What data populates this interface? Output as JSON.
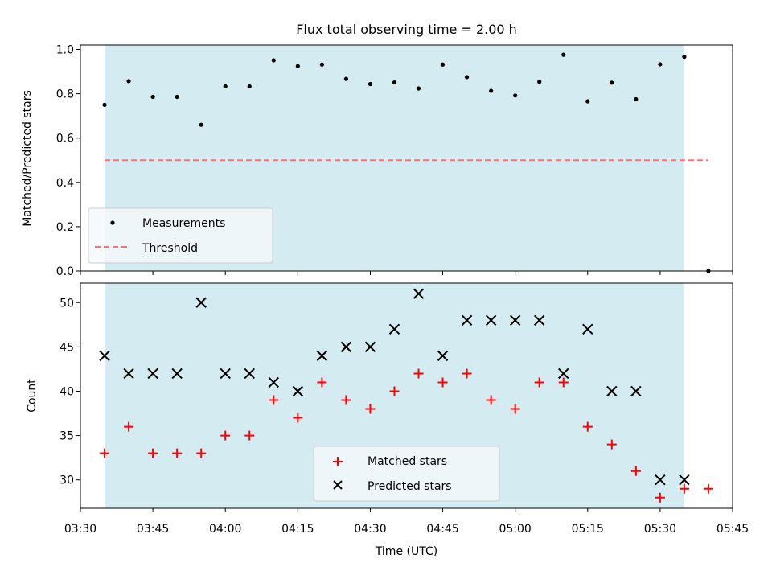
{
  "chart_data": {
    "title": "Flux total observing time = 2.00 h",
    "xlabel": "Time (UTC)",
    "x_tick_labels": [
      "03:30",
      "03:45",
      "04:00",
      "04:15",
      "04:30",
      "04:45",
      "05:00",
      "05:15",
      "05:30",
      "05:45"
    ],
    "x_tick_minutes": [
      210,
      225,
      240,
      255,
      270,
      285,
      300,
      315,
      330,
      345
    ],
    "xlim": [
      "03:30",
      "05:45"
    ],
    "observing_window": [
      "03:35",
      "05:35"
    ],
    "colors": {
      "window": "#d4ebf1",
      "matched": "#ff0000",
      "predicted": "#000000",
      "threshold": "#ff7070"
    },
    "panels": [
      {
        "type": "scatter",
        "ylabel": "Matched/Predicted stars",
        "ylim": [
          0,
          1.02
        ],
        "y_ticks": [
          "0.0",
          "0.2",
          "0.4",
          "0.6",
          "0.8",
          "1.0"
        ],
        "legend_position": "lower-left",
        "threshold": {
          "name": "Threshold",
          "value": 0.5,
          "x_range": [
            "03:35",
            "05:40"
          ]
        },
        "series": [
          {
            "name": "Measurements",
            "x": [
              "03:35",
              "03:40",
              "03:45",
              "03:50",
              "03:55",
              "04:00",
              "04:05",
              "04:10",
              "04:15",
              "04:20",
              "04:25",
              "04:30",
              "04:35",
              "04:40",
              "04:45",
              "04:50",
              "04:55",
              "05:00",
              "05:05",
              "05:10",
              "05:15",
              "05:20",
              "05:25",
              "05:30",
              "05:35",
              "05:40"
            ],
            "y": [
              0.75,
              0.857,
              0.786,
              0.786,
              0.66,
              0.833,
              0.833,
              0.951,
              0.925,
              0.932,
              0.867,
              0.844,
              0.851,
              0.824,
              0.932,
              0.875,
              0.813,
              0.792,
              0.854,
              0.976,
              0.766,
              0.85,
              0.775,
              0.933,
              0.967,
              0.0
            ]
          }
        ]
      },
      {
        "type": "scatter",
        "ylabel": "Count",
        "ylim": [
          26.8,
          52.2
        ],
        "y_ticks": [
          "30",
          "35",
          "40",
          "45",
          "50"
        ],
        "legend_position": "lower-center",
        "series": [
          {
            "name": "Matched stars",
            "marker": "plus",
            "x": [
              "03:35",
              "03:40",
              "03:45",
              "03:50",
              "03:55",
              "04:00",
              "04:05",
              "04:10",
              "04:15",
              "04:20",
              "04:25",
              "04:30",
              "04:35",
              "04:40",
              "04:45",
              "04:50",
              "04:55",
              "05:00",
              "05:05",
              "05:10",
              "05:15",
              "05:20",
              "05:25",
              "05:30",
              "05:35",
              "05:40"
            ],
            "y": [
              33,
              36,
              33,
              33,
              33,
              35,
              35,
              39,
              37,
              41,
              39,
              38,
              40,
              42,
              41,
              42,
              39,
              38,
              41,
              41,
              36,
              34,
              31,
              28,
              29,
              29
            ]
          },
          {
            "name": "Predicted stars",
            "marker": "x",
            "x": [
              "03:35",
              "03:40",
              "03:45",
              "03:50",
              "03:55",
              "04:00",
              "04:05",
              "04:10",
              "04:15",
              "04:20",
              "04:25",
              "04:30",
              "04:35",
              "04:40",
              "04:45",
              "04:50",
              "04:55",
              "05:00",
              "05:05",
              "05:10",
              "05:15",
              "05:20",
              "05:25",
              "05:30",
              "05:35"
            ],
            "y": [
              44,
              42,
              42,
              42,
              50,
              42,
              42,
              41,
              40,
              44,
              45,
              45,
              47,
              51,
              44,
              48,
              48,
              48,
              48,
              42,
              47,
              40,
              40,
              30,
              30
            ]
          }
        ]
      }
    ]
  }
}
